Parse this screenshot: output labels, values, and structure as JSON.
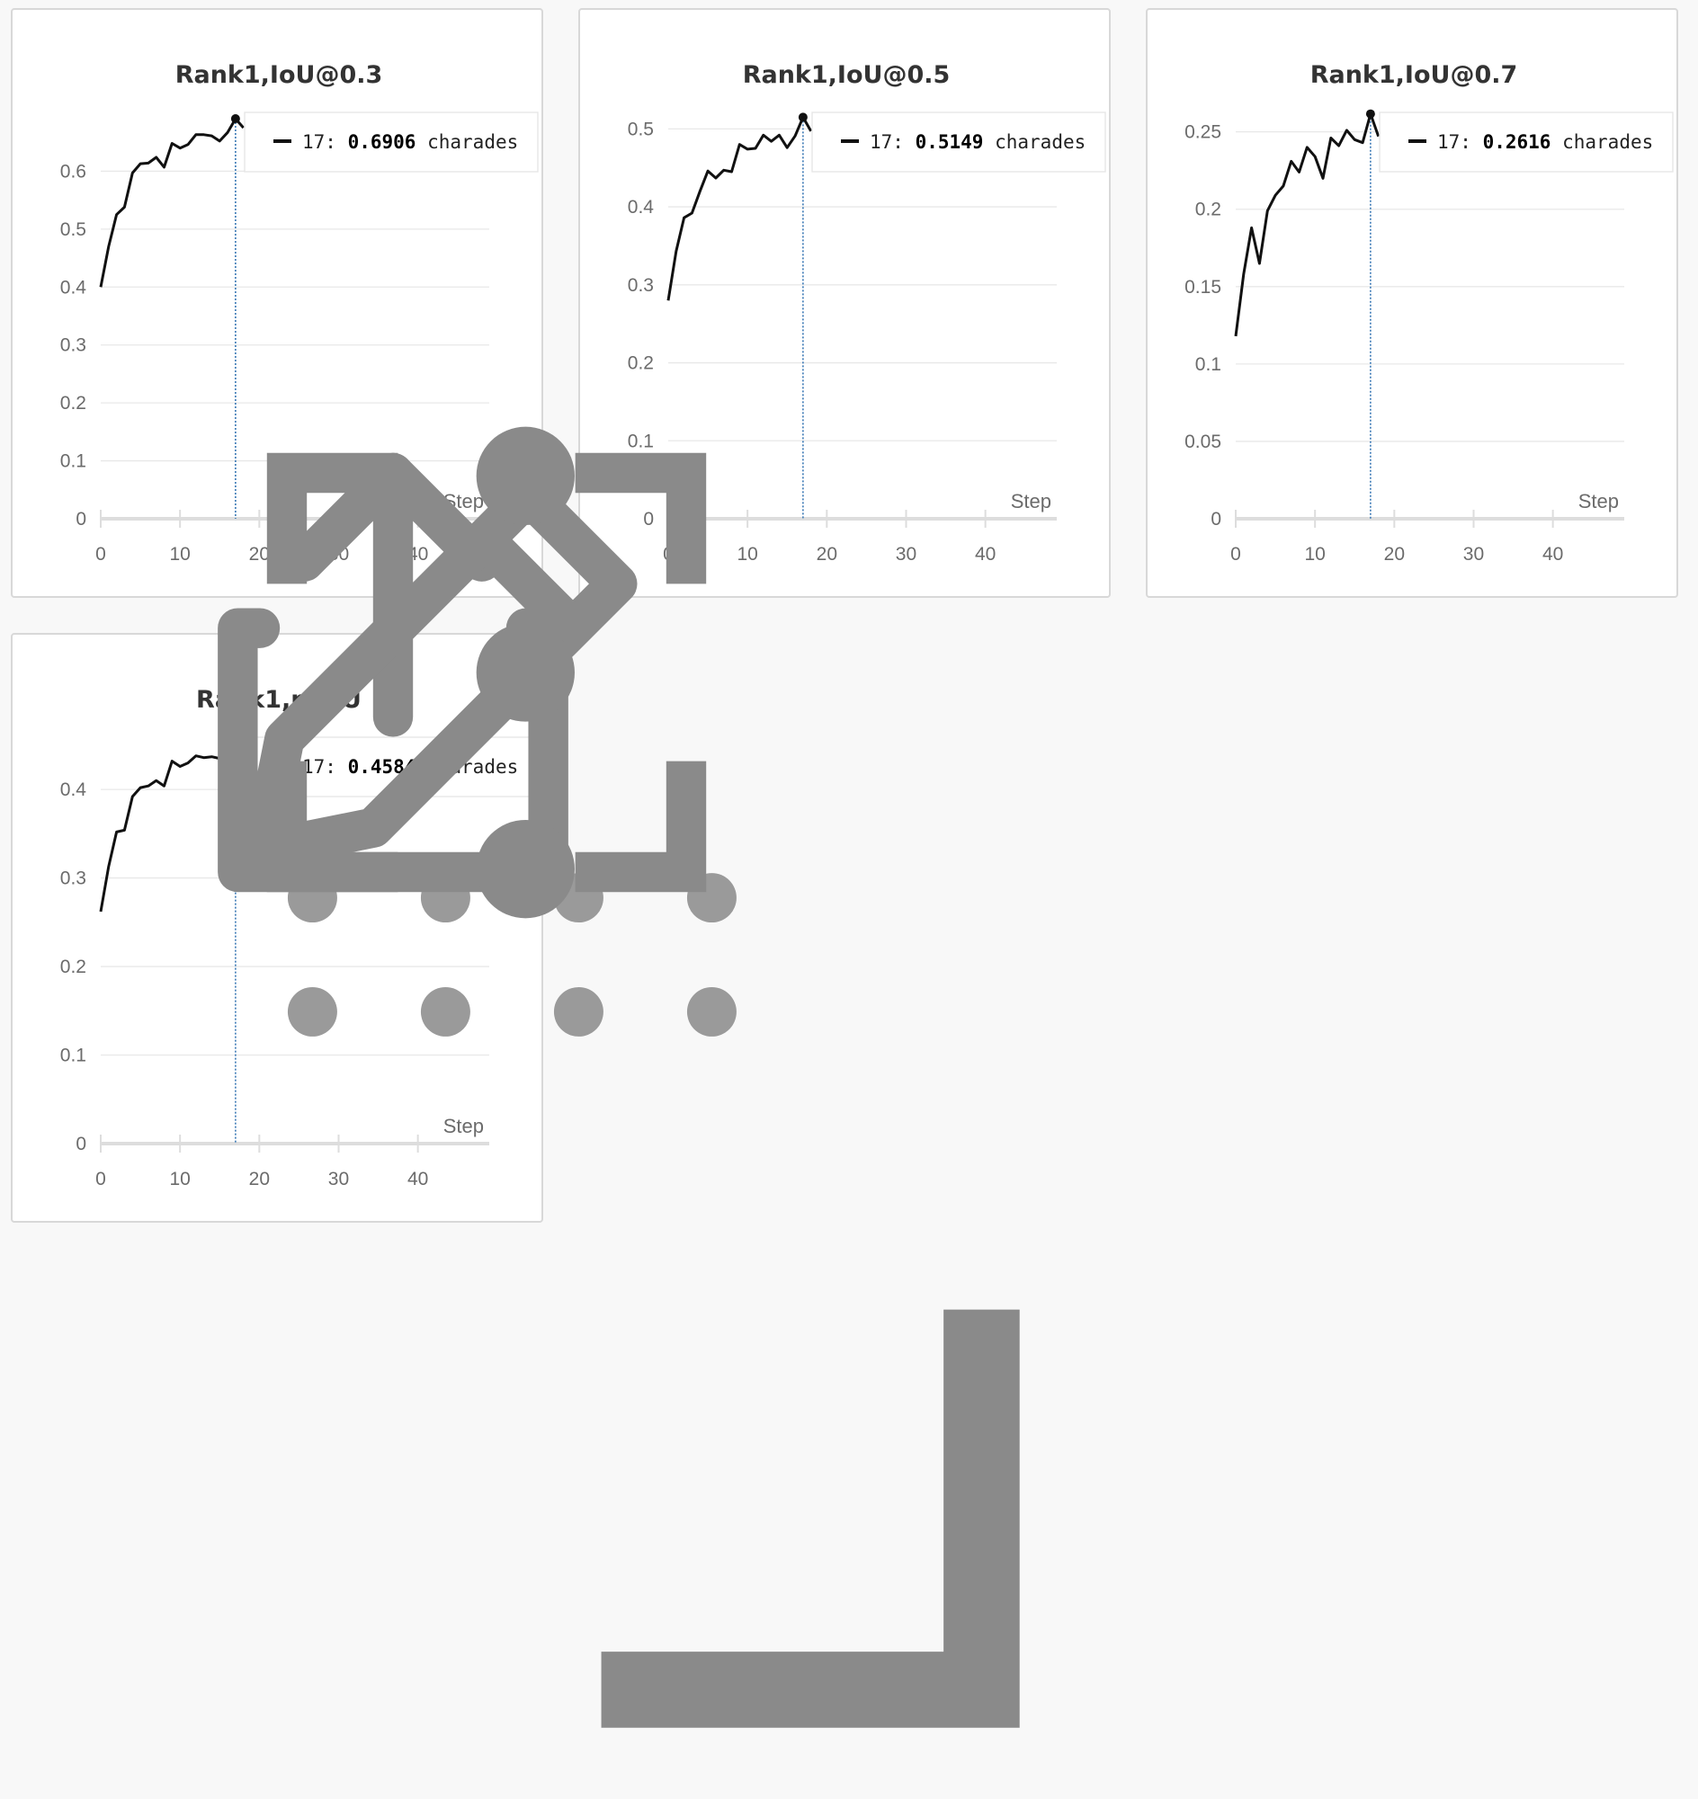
{
  "colors": {
    "line": "#111111",
    "hover": "#3a78b5",
    "grid": "#e8e8e8",
    "axis": "#dddddd"
  },
  "panel_tools": [
    "drag-handle-icon",
    "share-icon",
    "edit-pencil-icon",
    "fullscreen-icon",
    "more-vertical-icon",
    "resize-corner-icon"
  ],
  "chart_data": [
    {
      "type": "line",
      "title": "Rank1,IoU@0.3",
      "xlabel": "Step",
      "xlim": [
        0,
        49
      ],
      "ylim": [
        0,
        0.7
      ],
      "x_ticks": [
        "0",
        "10",
        "20",
        "30",
        "40"
      ],
      "y_ticks": [
        "0",
        "0.1",
        "0.2",
        "0.3",
        "0.4",
        "0.5",
        "0.6"
      ],
      "grid": true,
      "series": [
        {
          "values": [
            [
              0,
              0.4
            ],
            [
              1,
              0.47
            ],
            [
              2,
              0.525
            ],
            [
              3,
              0.538
            ],
            [
              4,
              0.597
            ],
            [
              5,
              0.613
            ],
            [
              6,
              0.614
            ],
            [
              7,
              0.624
            ],
            [
              8,
              0.607
            ],
            [
              9,
              0.648
            ],
            [
              10,
              0.64
            ],
            [
              11,
              0.646
            ],
            [
              12,
              0.663
            ],
            [
              13,
              0.663
            ],
            [
              14,
              0.661
            ],
            [
              15,
              0.652
            ],
            [
              16,
              0.667
            ],
            [
              17,
              0.6906
            ],
            [
              18,
              0.675
            ]
          ]
        }
      ],
      "hover": {
        "step": "17",
        "value": "0.6906",
        "run": "charades"
      }
    },
    {
      "type": "line",
      "title": "Rank1,IoU@0.5",
      "xlabel": "Step",
      "xlim": [
        0,
        49
      ],
      "ylim": [
        0,
        0.52
      ],
      "x_ticks": [
        "0",
        "10",
        "20",
        "30",
        "40"
      ],
      "y_ticks": [
        "0",
        "0.1",
        "0.2",
        "0.3",
        "0.4",
        "0.5"
      ],
      "grid": true,
      "series": [
        {
          "values": [
            [
              0,
              0.28
            ],
            [
              1,
              0.343
            ],
            [
              2,
              0.386
            ],
            [
              3,
              0.392
            ],
            [
              4,
              0.42
            ],
            [
              5,
              0.446
            ],
            [
              6,
              0.437
            ],
            [
              7,
              0.447
            ],
            [
              8,
              0.445
            ],
            [
              9,
              0.48
            ],
            [
              10,
              0.474
            ],
            [
              11,
              0.475
            ],
            [
              12,
              0.492
            ],
            [
              13,
              0.484
            ],
            [
              14,
              0.492
            ],
            [
              15,
              0.476
            ],
            [
              16,
              0.491
            ],
            [
              17,
              0.5149
            ],
            [
              18,
              0.497
            ]
          ]
        }
      ],
      "hover": {
        "step": "17",
        "value": "0.5149",
        "run": "charades"
      }
    },
    {
      "type": "line",
      "title": "Rank1,IoU@0.7",
      "xlabel": "Step",
      "xlim": [
        0,
        49
      ],
      "ylim": [
        0,
        0.262
      ],
      "x_ticks": [
        "0",
        "10",
        "20",
        "30",
        "40"
      ],
      "y_ticks": [
        "0",
        "0.05",
        "0.1",
        "0.15",
        "0.2",
        "0.25"
      ],
      "grid": true,
      "series": [
        {
          "values": [
            [
              0,
              0.118
            ],
            [
              1,
              0.158
            ],
            [
              2,
              0.188
            ],
            [
              3,
              0.165
            ],
            [
              4,
              0.199
            ],
            [
              5,
              0.209
            ],
            [
              6,
              0.215
            ],
            [
              7,
              0.231
            ],
            [
              8,
              0.224
            ],
            [
              9,
              0.24
            ],
            [
              10,
              0.234
            ],
            [
              11,
              0.22
            ],
            [
              12,
              0.246
            ],
            [
              13,
              0.241
            ],
            [
              14,
              0.251
            ],
            [
              15,
              0.245
            ],
            [
              16,
              0.243
            ],
            [
              17,
              0.2616
            ],
            [
              18,
              0.247
            ]
          ]
        }
      ],
      "hover": {
        "step": "17",
        "value": "0.2616",
        "run": "charades"
      }
    },
    {
      "type": "line",
      "title": "Rank1,mIoU",
      "xlabel": "Step",
      "xlim": [
        0,
        49
      ],
      "ylim": [
        0,
        0.458
      ],
      "x_ticks": [
        "0",
        "10",
        "20",
        "30",
        "40"
      ],
      "y_ticks": [
        "0",
        "0.1",
        "0.2",
        "0.3",
        "0.4"
      ],
      "grid": true,
      "series": [
        {
          "values": [
            [
              0,
              0.262
            ],
            [
              1,
              0.313
            ],
            [
              2,
              0.352
            ],
            [
              3,
              0.354
            ],
            [
              4,
              0.392
            ],
            [
              5,
              0.402
            ],
            [
              6,
              0.404
            ],
            [
              7,
              0.41
            ],
            [
              8,
              0.404
            ],
            [
              9,
              0.432
            ],
            [
              10,
              0.426
            ],
            [
              11,
              0.43
            ],
            [
              12,
              0.438
            ],
            [
              13,
              0.436
            ],
            [
              14,
              0.437
            ],
            [
              15,
              0.435
            ],
            [
              16,
              0.442
            ],
            [
              17,
              0.4584
            ],
            [
              18,
              0.448
            ]
          ]
        }
      ],
      "hover": {
        "step": "17",
        "value": "0.4584",
        "run": "charades"
      }
    }
  ]
}
